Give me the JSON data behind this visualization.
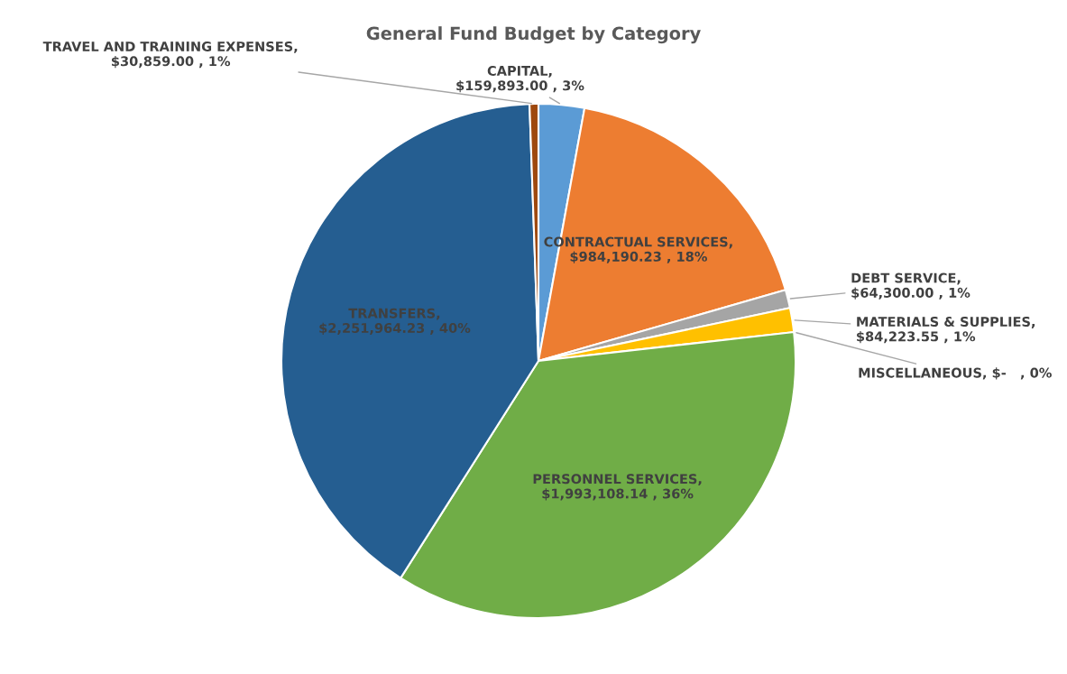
{
  "chart_data": {
    "type": "pie",
    "title": "General Fund Budget by Category",
    "categories": [
      "CAPITAL",
      "CONTRACTUAL SERVICES",
      "DEBT SERVICE",
      "MATERIALS & SUPPLIES",
      "MISCELLANEOUS",
      "PERSONNEL SERVICES",
      "TRANSFERS",
      "TRAVEL AND TRAINING EXPENSES"
    ],
    "values": [
      159893.0,
      984190.23,
      64300.0,
      84223.55,
      0,
      1993108.14,
      2251964.23,
      30859.0
    ],
    "value_labels": [
      ", $159,893.00 , 3%",
      ", $984,190.23 , 18%",
      ", $64,300.00 , 1%",
      ", $84,223.55 , 1%",
      ", $-   , 0%",
      ", $1,993,108.14 , 36%",
      ", $2,251,964.23 , 40%",
      ", $30,859.00 , 1%"
    ],
    "colors": [
      "#5b9bd5",
      "#ed7d31",
      "#a5a5a5",
      "#ffc000",
      "#4472c4",
      "#70ad47",
      "#255e91",
      "#9e480e"
    ],
    "legend": false
  }
}
